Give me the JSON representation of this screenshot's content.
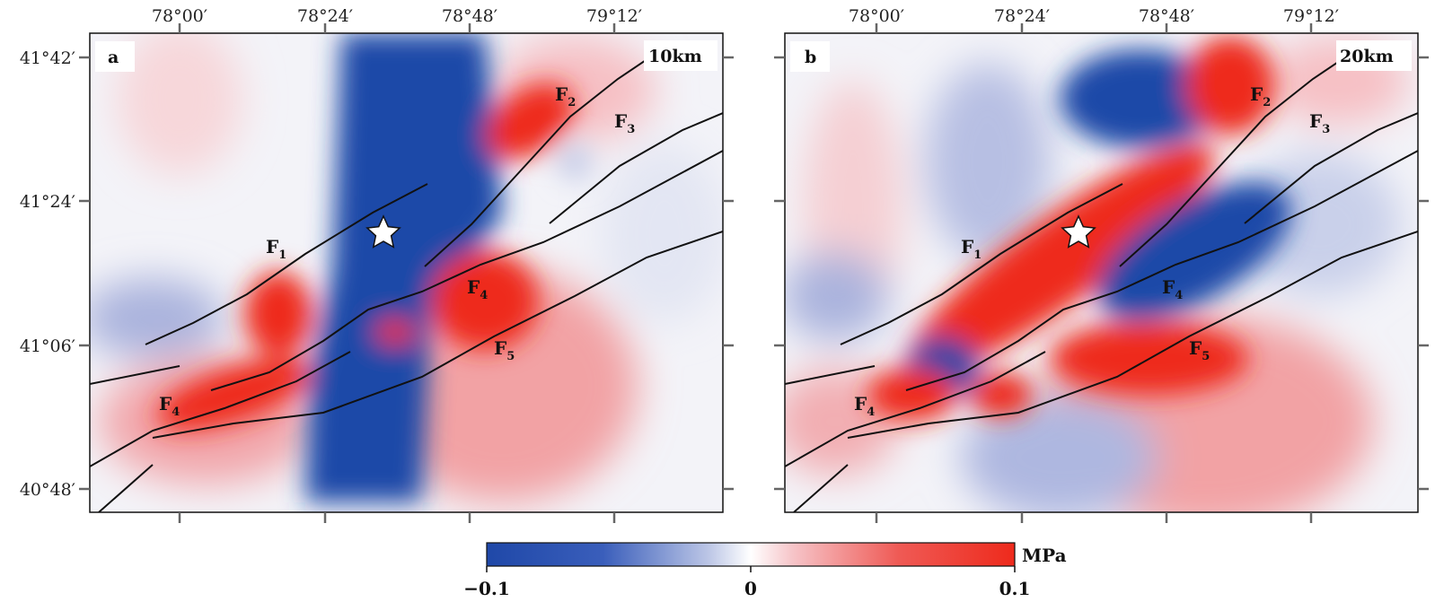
{
  "panels": [
    {
      "letter": "a",
      "depth": "10km",
      "x_ticks": [
        "78°00′",
        "78°24′",
        "78°48′",
        "79°12′"
      ],
      "y_ticks": [
        "41°42′",
        "41°24′",
        "41°06′",
        "40°48′"
      ],
      "faults": [
        "F1",
        "F2",
        "F3",
        "F4",
        "F4",
        "F5"
      ],
      "epicenter": "star-icon"
    },
    {
      "letter": "b",
      "depth": "20km",
      "x_ticks": [
        "78°00′",
        "78°24′",
        "78°48′",
        "79°12′"
      ],
      "faults": [
        "F1",
        "F2",
        "F3",
        "F4",
        "F4",
        "F5"
      ],
      "epicenter": "star-icon"
    }
  ],
  "colorbar": {
    "min_label": "−0.1",
    "mid_label": "0",
    "max_label": "0.1",
    "unit": "MPa",
    "colors": {
      "negative": "#1f48a8",
      "zero": "#ffffff",
      "positive": "#ee2a1c"
    }
  },
  "fault_line_color": "#111111"
}
